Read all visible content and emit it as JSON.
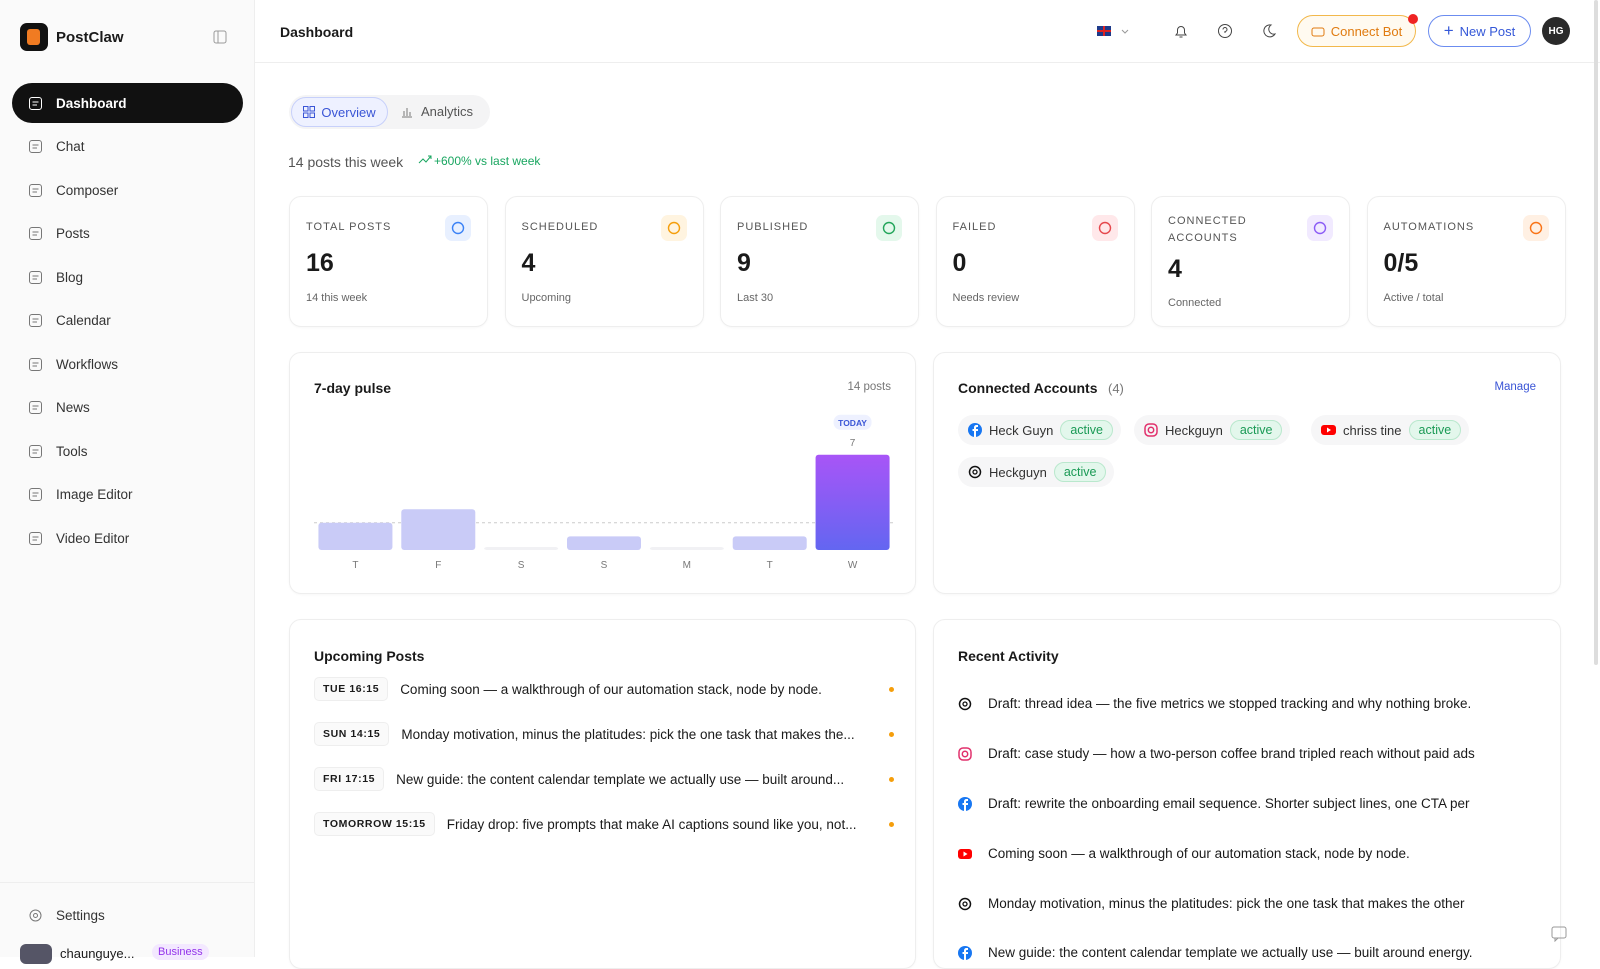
{
  "sidebar": {
    "brand": "PostClaw",
    "nav": [
      "Dashboard",
      "Chat",
      "Composer",
      "Posts",
      "Blog",
      "Calendar",
      "Workflows",
      "News",
      "Tools",
      "Image Editor",
      "Video Editor"
    ],
    "settings": "Settings",
    "user": "chaunguye...",
    "plan": "Business"
  },
  "header": {
    "title": "Dashboard",
    "connect_bot": "Connect Bot",
    "new_post": "New Post",
    "avatar": "HG"
  },
  "tabs": [
    "Overview",
    "Analytics"
  ],
  "summary": {
    "text": "14 posts this week",
    "trend": "+600% vs last week"
  },
  "stats": [
    {
      "label": "TOTAL POSTS",
      "value": 16,
      "sub": "14 this week"
    },
    {
      "label": "SCHEDULED",
      "value": 4,
      "sub": "Upcoming"
    },
    {
      "label": "PUBLISHED",
      "value": 9,
      "sub": "Last 30"
    },
    {
      "label": "FAILED",
      "value": 0,
      "sub": "Needs review"
    },
    {
      "label": "CONNECTED ACCOUNTS",
      "value": 4,
      "sub": "Connected"
    },
    {
      "label": "AUTOMATIONS",
      "value": "0/5",
      "sub": "Active / total"
    }
  ],
  "pulse": {
    "title": "7-day pulse",
    "total": "14 posts",
    "today": "TODAY",
    "categories": [
      "T",
      "F",
      "S",
      "S",
      "M",
      "T",
      "W"
    ],
    "values": [
      2,
      3,
      0,
      1,
      0,
      1,
      7
    ]
  },
  "accounts": {
    "title": "Connected Accounts",
    "count": "(4)",
    "manage": "Manage",
    "items": [
      {
        "name": "Heck Guyn",
        "status": "active"
      },
      {
        "name": "Heckguyn",
        "status": "active"
      },
      {
        "name": "chriss tine",
        "status": "active"
      },
      {
        "name": "Heckguyn",
        "status": "active"
      }
    ]
  },
  "upcoming": {
    "title": "Upcoming Posts",
    "items": [
      {
        "time": "TUE 16:15",
        "text": "Coming soon — a walkthrough of our automation stack, node by node."
      },
      {
        "time": "SUN 14:15",
        "text": "Monday motivation, minus the platitudes: pick the one task that makes the..."
      },
      {
        "time": "FRI 17:15",
        "text": "New guide: the content calendar template we actually use — built around..."
      },
      {
        "time": "TOMORROW 15:15",
        "text": "Friday drop: five prompts that make AI captions sound like you, not..."
      }
    ]
  },
  "activity": {
    "title": "Recent Activity",
    "items": [
      "Draft: thread idea — the five metrics we stopped tracking and why nothing broke.",
      "Draft: case study — how a two-person coffee brand tripled reach without paid ads",
      "Draft: rewrite the onboarding email sequence. Shorter subject lines, one CTA per",
      "Coming soon — a walkthrough of our automation stack, node by node.",
      "Monday motivation, minus the platitudes: pick the one task that makes the other",
      "New guide: the content calendar template we actually use — built around energy."
    ]
  }
}
